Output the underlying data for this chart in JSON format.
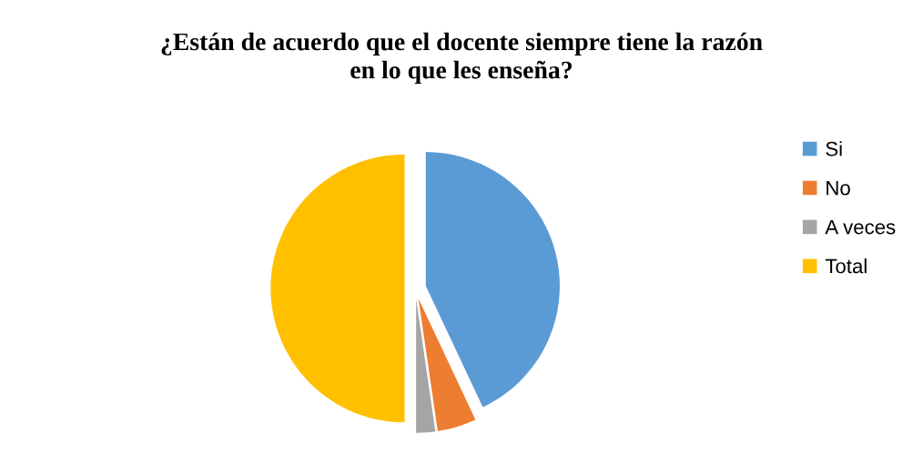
{
  "chart_data": {
    "type": "pie",
    "title": "¿Están de acuerdo que el docente siempre tiene la razón\nen lo que les enseña?",
    "categories": [
      "Si",
      "No",
      "A veces",
      "Total"
    ],
    "values": [
      43,
      4.7,
      2.3,
      50
    ],
    "colors": [
      "#5b9bd5",
      "#ed7d31",
      "#a5a5a5",
      "#ffc000"
    ],
    "legend": "right"
  }
}
